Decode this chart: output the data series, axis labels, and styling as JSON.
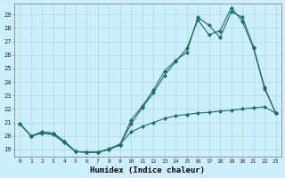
{
  "xlabel": "Humidex (Indice chaleur)",
  "bg_color": "#cceeff",
  "grid_color": "#aaddcc",
  "line_color": "#1a6e6a",
  "x_ticks": [
    0,
    1,
    2,
    3,
    4,
    5,
    6,
    7,
    8,
    9,
    10,
    11,
    12,
    13,
    14,
    15,
    16,
    17,
    18,
    19,
    20,
    21,
    22,
    23
  ],
  "y_ticks": [
    19,
    20,
    21,
    22,
    23,
    24,
    25,
    26,
    27,
    28,
    29
  ],
  "xlim": [
    -0.5,
    23.5
  ],
  "ylim": [
    18.5,
    29.8
  ],
  "line1": {
    "x": [
      0,
      1,
      2,
      3,
      4,
      5,
      6,
      7,
      8,
      9,
      10,
      11,
      12,
      13,
      14,
      15,
      16,
      17,
      18,
      19,
      20,
      21,
      22,
      23
    ],
    "y": [
      20.9,
      20.0,
      20.3,
      20.2,
      19.6,
      18.85,
      18.8,
      18.8,
      19.0,
      19.35,
      20.9,
      22.1,
      23.2,
      24.5,
      25.5,
      26.5,
      28.6,
      27.5,
      27.8,
      29.5,
      28.5,
      26.5,
      23.5,
      21.7
    ]
  },
  "line2": {
    "x": [
      0,
      1,
      2,
      3,
      4,
      5,
      6,
      7,
      8,
      9,
      10,
      11,
      12,
      13,
      14,
      15,
      16,
      17,
      18,
      19,
      20,
      21,
      22,
      23
    ],
    "y": [
      20.9,
      20.0,
      20.3,
      20.2,
      19.6,
      18.85,
      18.8,
      18.8,
      19.0,
      19.35,
      21.2,
      22.2,
      23.4,
      24.8,
      25.6,
      26.2,
      28.8,
      28.2,
      27.3,
      29.2,
      28.8,
      26.6,
      23.6,
      21.7
    ]
  },
  "line3": {
    "x": [
      0,
      1,
      2,
      3,
      4,
      5,
      6,
      7,
      8,
      9,
      10,
      11,
      12,
      13,
      14,
      15,
      16,
      17,
      18,
      19,
      20,
      21,
      22,
      23
    ],
    "y": [
      20.9,
      20.0,
      20.2,
      20.1,
      19.5,
      18.85,
      18.8,
      18.8,
      19.05,
      19.4,
      20.3,
      20.7,
      21.0,
      21.3,
      21.5,
      21.6,
      21.7,
      21.75,
      21.85,
      21.9,
      22.0,
      22.1,
      22.15,
      21.7
    ]
  }
}
